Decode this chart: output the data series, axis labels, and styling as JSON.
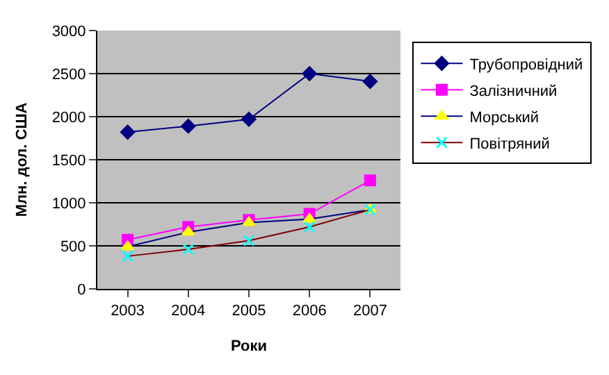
{
  "chart_data": {
    "type": "line",
    "xlabel": "Роки",
    "ylabel": "Млн. дол. США",
    "categories": [
      "2003",
      "2004",
      "2005",
      "2006",
      "2007"
    ],
    "series": [
      {
        "name": "Трубопровідний",
        "color": "#000080",
        "marker": "diamond",
        "values": [
          1820,
          1890,
          1970,
          2500,
          2410
        ]
      },
      {
        "name": "Залізничний",
        "color": "#ff00ff",
        "marker": "square",
        "values": [
          570,
          720,
          800,
          870,
          1260
        ]
      },
      {
        "name": "Морський",
        "color": "#000080",
        "colors": [
          "#ffff00",
          "#ffff00",
          "#ffff00",
          "#ffff00",
          "#ffff00"
        ],
        "marker": "triangle",
        "values": [
          490,
          660,
          770,
          810,
          920
        ]
      },
      {
        "name": "Повітряний",
        "color": "#800000",
        "colors": [
          "#00ffff",
          "#00ffff",
          "#00ffff",
          "#00ffff",
          "#00ffff"
        ],
        "marker": "cross",
        "values": [
          380,
          460,
          560,
          720,
          920
        ]
      }
    ],
    "ylim": [
      0,
      3000
    ],
    "yticks": [
      0,
      500,
      1000,
      1500,
      2000,
      2500,
      3000
    ],
    "grid": "y",
    "legend": "right"
  }
}
